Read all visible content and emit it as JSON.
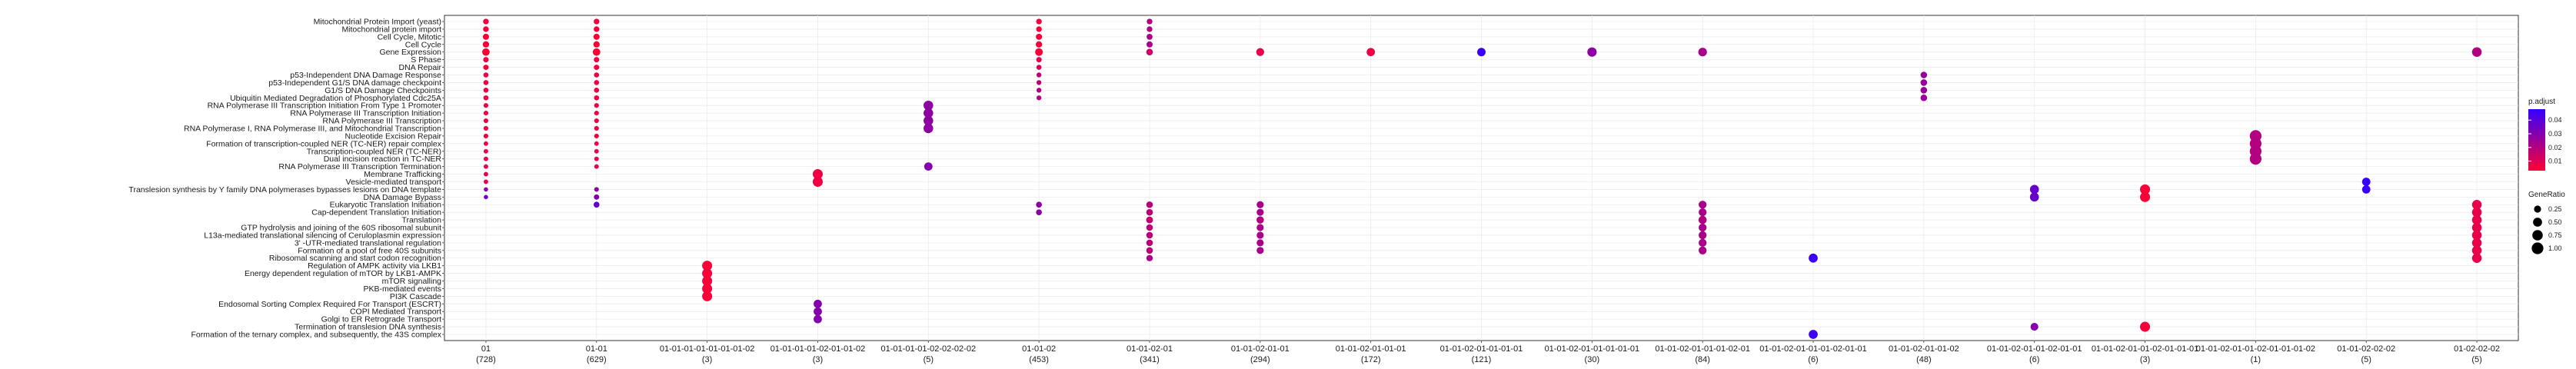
{
  "chart_data": {
    "type": "scatter",
    "title": "",
    "xlabel": "",
    "ylabel": "",
    "grid": true,
    "legend_position": "right",
    "categories": [
      {
        "label": "01",
        "count": "(728)"
      },
      {
        "label": "01-01",
        "count": "(629)"
      },
      {
        "label": "01-01-01-01-01-01-01-02",
        "count": "(3)"
      },
      {
        "label": "01-01-01-01-02-01-01-02",
        "count": "(3)"
      },
      {
        "label": "01-01-01-01-02-02-02-02",
        "count": "(5)"
      },
      {
        "label": "01-01-02",
        "count": "(453)"
      },
      {
        "label": "01-01-02-01",
        "count": "(341)"
      },
      {
        "label": "01-01-02-01-01",
        "count": "(294)"
      },
      {
        "label": "01-01-02-01-01-01",
        "count": "(172)"
      },
      {
        "label": "01-01-02-01-01-01-01",
        "count": "(121)"
      },
      {
        "label": "01-01-02-01-01-01-01-01",
        "count": "(30)"
      },
      {
        "label": "01-01-02-01-01-01-02-01",
        "count": "(84)"
      },
      {
        "label": "01-01-02-01-01-01-02-01-01",
        "count": "(6)"
      },
      {
        "label": "01-01-02-01-01-02",
        "count": "(48)"
      },
      {
        "label": "01-01-02-01-01-02-01-01",
        "count": "(6)"
      },
      {
        "label": "01-01-02-01-01-02-01-01-01",
        "count": "(3)"
      },
      {
        "label": "01-01-02-01-01-02-01-01-01-02",
        "count": "(1)"
      },
      {
        "label": "01-01-02-02-02",
        "count": "(5)"
      },
      {
        "label": "01-02-02-02",
        "count": "(5)"
      }
    ],
    "pathways": [
      "Mitochondrial Protein Import (yeast)",
      "Mitochondrial protein import",
      "Cell Cycle, Mitotic",
      "Cell Cycle",
      "Gene Expression",
      "S Phase",
      "DNA Repair",
      "p53-Independent DNA Damage Response",
      "p53-Independent G1/S DNA damage checkpoint",
      "G1/S DNA Damage Checkpoints",
      "Ubiquitin Mediated Degradation of Phosphorylated Cdc25A",
      "RNA Polymerase III Transcription Initiation From Type 1 Promoter",
      "RNA Polymerase III Transcription Initiation",
      "RNA Polymerase III Transcription",
      "RNA Polymerase I, RNA Polymerase III, and Mitochondrial Transcription",
      "Nucleotide Excision Repair",
      "Formation of transcription-coupled NER (TC-NER) repair complex",
      "Transcription-coupled NER (TC-NER)",
      "Dual incision reaction in TC-NER",
      "RNA Polymerase III Transcription Termination",
      "Membrane Trafficking",
      "Vesicle-mediated transport",
      "Translesion synthesis by Y family DNA polymerases bypasses lesions on DNA template",
      "DNA Damage Bypass",
      "Eukaryotic Translation Initiation",
      "Cap-dependent Translation Initiation",
      "Translation",
      "GTP hydrolysis and joining of the 60S ribosomal subunit",
      "L13a-mediated translational silencing of Ceruloplasmin expression",
      "3' -UTR-mediated translational regulation",
      "Formation of a pool of free 40S subunits",
      "Ribosomal scanning and start codon recognition",
      "Regulation of AMPK activity via LKB1",
      "Energy dependent regulation of mTOR by LKB1-AMPK",
      "mTOR signalling",
      "PKB-mediated events",
      "PI3K Cascade",
      "Endosomal Sorting Complex Required For Transport (ESCRT)",
      "COPI Mediated Transport",
      "Golgi to ER Retrograde Transport",
      "Termination of translesion DNA synthesis",
      "Formation of the ternary complex, and subsequently, the 43S complex"
    ],
    "points": [
      {
        "x": 0,
        "y": 0,
        "ratio": 0.12,
        "p": 0.005
      },
      {
        "x": 0,
        "y": 1,
        "ratio": 0.12,
        "p": 0.005
      },
      {
        "x": 0,
        "y": 2,
        "ratio": 0.16,
        "p": 0.005
      },
      {
        "x": 0,
        "y": 3,
        "ratio": 0.18,
        "p": 0.005
      },
      {
        "x": 0,
        "y": 4,
        "ratio": 0.3,
        "p": 0.004
      },
      {
        "x": 0,
        "y": 5,
        "ratio": 0.1,
        "p": 0.005
      },
      {
        "x": 0,
        "y": 6,
        "ratio": 0.1,
        "p": 0.005
      },
      {
        "x": 0,
        "y": 7,
        "ratio": 0.08,
        "p": 0.006
      },
      {
        "x": 0,
        "y": 8,
        "ratio": 0.08,
        "p": 0.006
      },
      {
        "x": 0,
        "y": 9,
        "ratio": 0.08,
        "p": 0.006
      },
      {
        "x": 0,
        "y": 10,
        "ratio": 0.08,
        "p": 0.006
      },
      {
        "x": 0,
        "y": 11,
        "ratio": 0.06,
        "p": 0.007
      },
      {
        "x": 0,
        "y": 12,
        "ratio": 0.06,
        "p": 0.007
      },
      {
        "x": 0,
        "y": 13,
        "ratio": 0.06,
        "p": 0.007
      },
      {
        "x": 0,
        "y": 14,
        "ratio": 0.06,
        "p": 0.007
      },
      {
        "x": 0,
        "y": 15,
        "ratio": 0.06,
        "p": 0.007
      },
      {
        "x": 0,
        "y": 16,
        "ratio": 0.05,
        "p": 0.008
      },
      {
        "x": 0,
        "y": 17,
        "ratio": 0.05,
        "p": 0.008
      },
      {
        "x": 0,
        "y": 18,
        "ratio": 0.05,
        "p": 0.008
      },
      {
        "x": 0,
        "y": 19,
        "ratio": 0.05,
        "p": 0.008
      },
      {
        "x": 0,
        "y": 20,
        "ratio": 0.05,
        "p": 0.009
      },
      {
        "x": 0,
        "y": 21,
        "ratio": 0.05,
        "p": 0.009
      },
      {
        "x": 0,
        "y": 22,
        "ratio": 0.04,
        "p": 0.028
      },
      {
        "x": 0,
        "y": 23,
        "ratio": 0.04,
        "p": 0.036
      },
      {
        "x": 1,
        "y": 0,
        "ratio": 0.12,
        "p": 0.005
      },
      {
        "x": 1,
        "y": 1,
        "ratio": 0.12,
        "p": 0.005
      },
      {
        "x": 1,
        "y": 2,
        "ratio": 0.16,
        "p": 0.005
      },
      {
        "x": 1,
        "y": 3,
        "ratio": 0.18,
        "p": 0.005
      },
      {
        "x": 1,
        "y": 4,
        "ratio": 0.3,
        "p": 0.004
      },
      {
        "x": 1,
        "y": 5,
        "ratio": 0.1,
        "p": 0.005
      },
      {
        "x": 1,
        "y": 6,
        "ratio": 0.1,
        "p": 0.005
      },
      {
        "x": 1,
        "y": 7,
        "ratio": 0.08,
        "p": 0.006
      },
      {
        "x": 1,
        "y": 8,
        "ratio": 0.08,
        "p": 0.006
      },
      {
        "x": 1,
        "y": 9,
        "ratio": 0.08,
        "p": 0.006
      },
      {
        "x": 1,
        "y": 10,
        "ratio": 0.08,
        "p": 0.006
      },
      {
        "x": 1,
        "y": 11,
        "ratio": 0.06,
        "p": 0.007
      },
      {
        "x": 1,
        "y": 12,
        "ratio": 0.06,
        "p": 0.007
      },
      {
        "x": 1,
        "y": 13,
        "ratio": 0.06,
        "p": 0.007
      },
      {
        "x": 1,
        "y": 14,
        "ratio": 0.06,
        "p": 0.007
      },
      {
        "x": 1,
        "y": 15,
        "ratio": 0.06,
        "p": 0.007
      },
      {
        "x": 1,
        "y": 16,
        "ratio": 0.05,
        "p": 0.008
      },
      {
        "x": 1,
        "y": 17,
        "ratio": 0.05,
        "p": 0.008
      },
      {
        "x": 1,
        "y": 18,
        "ratio": 0.05,
        "p": 0.008
      },
      {
        "x": 1,
        "y": 19,
        "ratio": 0.05,
        "p": 0.009
      },
      {
        "x": 1,
        "y": 22,
        "ratio": 0.06,
        "p": 0.028
      },
      {
        "x": 1,
        "y": 23,
        "ratio": 0.1,
        "p": 0.03
      },
      {
        "x": 1,
        "y": 24,
        "ratio": 0.14,
        "p": 0.037
      },
      {
        "x": 2,
        "y": 32,
        "ratio": 0.67,
        "p": 0.004
      },
      {
        "x": 2,
        "y": 33,
        "ratio": 0.67,
        "p": 0.004
      },
      {
        "x": 2,
        "y": 34,
        "ratio": 0.67,
        "p": 0.004
      },
      {
        "x": 2,
        "y": 35,
        "ratio": 0.67,
        "p": 0.004
      },
      {
        "x": 2,
        "y": 36,
        "ratio": 0.67,
        "p": 0.004
      },
      {
        "x": 3,
        "y": 20,
        "ratio": 0.67,
        "p": 0.006
      },
      {
        "x": 3,
        "y": 21,
        "ratio": 0.67,
        "p": 0.006
      },
      {
        "x": 3,
        "y": 37,
        "ratio": 0.4,
        "p": 0.03
      },
      {
        "x": 3,
        "y": 38,
        "ratio": 0.4,
        "p": 0.03
      },
      {
        "x": 3,
        "y": 39,
        "ratio": 0.4,
        "p": 0.03
      },
      {
        "x": 4,
        "y": 11,
        "ratio": 0.6,
        "p": 0.028
      },
      {
        "x": 4,
        "y": 12,
        "ratio": 0.6,
        "p": 0.028
      },
      {
        "x": 4,
        "y": 13,
        "ratio": 0.6,
        "p": 0.028
      },
      {
        "x": 4,
        "y": 14,
        "ratio": 0.6,
        "p": 0.028
      },
      {
        "x": 4,
        "y": 19,
        "ratio": 0.4,
        "p": 0.03
      },
      {
        "x": 5,
        "y": 0,
        "ratio": 0.12,
        "p": 0.005
      },
      {
        "x": 5,
        "y": 1,
        "ratio": 0.12,
        "p": 0.005
      },
      {
        "x": 5,
        "y": 2,
        "ratio": 0.16,
        "p": 0.005
      },
      {
        "x": 5,
        "y": 3,
        "ratio": 0.18,
        "p": 0.005
      },
      {
        "x": 5,
        "y": 4,
        "ratio": 0.32,
        "p": 0.004
      },
      {
        "x": 5,
        "y": 5,
        "ratio": 0.1,
        "p": 0.008
      },
      {
        "x": 5,
        "y": 6,
        "ratio": 0.08,
        "p": 0.012
      },
      {
        "x": 5,
        "y": 7,
        "ratio": 0.07,
        "p": 0.018
      },
      {
        "x": 5,
        "y": 8,
        "ratio": 0.07,
        "p": 0.018
      },
      {
        "x": 5,
        "y": 9,
        "ratio": 0.07,
        "p": 0.02
      },
      {
        "x": 5,
        "y": 10,
        "ratio": 0.07,
        "p": 0.02
      },
      {
        "x": 5,
        "y": 24,
        "ratio": 0.14,
        "p": 0.028
      },
      {
        "x": 5,
        "y": 25,
        "ratio": 0.14,
        "p": 0.028
      },
      {
        "x": 6,
        "y": 0,
        "ratio": 0.12,
        "p": 0.02
      },
      {
        "x": 6,
        "y": 1,
        "ratio": 0.12,
        "p": 0.02
      },
      {
        "x": 6,
        "y": 2,
        "ratio": 0.14,
        "p": 0.022
      },
      {
        "x": 6,
        "y": 3,
        "ratio": 0.16,
        "p": 0.022
      },
      {
        "x": 6,
        "y": 4,
        "ratio": 0.2,
        "p": 0.014
      },
      {
        "x": 6,
        "y": 24,
        "ratio": 0.2,
        "p": 0.018
      },
      {
        "x": 6,
        "y": 25,
        "ratio": 0.2,
        "p": 0.018
      },
      {
        "x": 6,
        "y": 26,
        "ratio": 0.22,
        "p": 0.016
      },
      {
        "x": 6,
        "y": 27,
        "ratio": 0.2,
        "p": 0.018
      },
      {
        "x": 6,
        "y": 28,
        "ratio": 0.2,
        "p": 0.018
      },
      {
        "x": 6,
        "y": 29,
        "ratio": 0.2,
        "p": 0.018
      },
      {
        "x": 6,
        "y": 30,
        "ratio": 0.2,
        "p": 0.018
      },
      {
        "x": 6,
        "y": 31,
        "ratio": 0.18,
        "p": 0.022
      },
      {
        "x": 7,
        "y": 4,
        "ratio": 0.35,
        "p": 0.008
      },
      {
        "x": 7,
        "y": 24,
        "ratio": 0.25,
        "p": 0.022
      },
      {
        "x": 7,
        "y": 25,
        "ratio": 0.25,
        "p": 0.022
      },
      {
        "x": 7,
        "y": 26,
        "ratio": 0.28,
        "p": 0.02
      },
      {
        "x": 7,
        "y": 27,
        "ratio": 0.25,
        "p": 0.022
      },
      {
        "x": 7,
        "y": 28,
        "ratio": 0.25,
        "p": 0.022
      },
      {
        "x": 7,
        "y": 29,
        "ratio": 0.25,
        "p": 0.022
      },
      {
        "x": 7,
        "y": 30,
        "ratio": 0.25,
        "p": 0.022
      },
      {
        "x": 8,
        "y": 4,
        "ratio": 0.4,
        "p": 0.006
      },
      {
        "x": 9,
        "y": 4,
        "ratio": 0.42,
        "p": 0.046
      },
      {
        "x": 10,
        "y": 4,
        "ratio": 0.55,
        "p": 0.028
      },
      {
        "x": 11,
        "y": 4,
        "ratio": 0.45,
        "p": 0.022
      },
      {
        "x": 11,
        "y": 24,
        "ratio": 0.35,
        "p": 0.022
      },
      {
        "x": 11,
        "y": 25,
        "ratio": 0.35,
        "p": 0.022
      },
      {
        "x": 11,
        "y": 26,
        "ratio": 0.38,
        "p": 0.02
      },
      {
        "x": 11,
        "y": 27,
        "ratio": 0.35,
        "p": 0.022
      },
      {
        "x": 11,
        "y": 28,
        "ratio": 0.35,
        "p": 0.022
      },
      {
        "x": 11,
        "y": 29,
        "ratio": 0.35,
        "p": 0.022
      },
      {
        "x": 11,
        "y": 30,
        "ratio": 0.35,
        "p": 0.022
      },
      {
        "x": 12,
        "y": 31,
        "ratio": 0.5,
        "p": 0.046
      },
      {
        "x": 12,
        "y": 41,
        "ratio": 0.5,
        "p": 0.046
      },
      {
        "x": 13,
        "y": 7,
        "ratio": 0.2,
        "p": 0.026
      },
      {
        "x": 13,
        "y": 8,
        "ratio": 0.2,
        "p": 0.026
      },
      {
        "x": 13,
        "y": 9,
        "ratio": 0.2,
        "p": 0.026
      },
      {
        "x": 13,
        "y": 10,
        "ratio": 0.2,
        "p": 0.026
      },
      {
        "x": 14,
        "y": 22,
        "ratio": 0.5,
        "p": 0.036
      },
      {
        "x": 14,
        "y": 23,
        "ratio": 0.5,
        "p": 0.036
      },
      {
        "x": 14,
        "y": 40,
        "ratio": 0.33,
        "p": 0.03
      },
      {
        "x": 15,
        "y": 22,
        "ratio": 0.67,
        "p": 0.004
      },
      {
        "x": 15,
        "y": 23,
        "ratio": 0.67,
        "p": 0.004
      },
      {
        "x": 15,
        "y": 40,
        "ratio": 0.67,
        "p": 0.004
      },
      {
        "x": 16,
        "y": 15,
        "ratio": 1.0,
        "p": 0.02
      },
      {
        "x": 16,
        "y": 16,
        "ratio": 1.0,
        "p": 0.02
      },
      {
        "x": 16,
        "y": 17,
        "ratio": 1.0,
        "p": 0.02
      },
      {
        "x": 16,
        "y": 18,
        "ratio": 1.0,
        "p": 0.02
      },
      {
        "x": 17,
        "y": 21,
        "ratio": 0.4,
        "p": 0.047
      },
      {
        "x": 17,
        "y": 22,
        "ratio": 0.4,
        "p": 0.047
      },
      {
        "x": 18,
        "y": 4,
        "ratio": 0.6,
        "p": 0.02
      },
      {
        "x": 18,
        "y": 24,
        "ratio": 0.6,
        "p": 0.008
      },
      {
        "x": 18,
        "y": 25,
        "ratio": 0.6,
        "p": 0.008
      },
      {
        "x": 18,
        "y": 26,
        "ratio": 0.6,
        "p": 0.008
      },
      {
        "x": 18,
        "y": 27,
        "ratio": 0.6,
        "p": 0.008
      },
      {
        "x": 18,
        "y": 28,
        "ratio": 0.6,
        "p": 0.008
      },
      {
        "x": 18,
        "y": 29,
        "ratio": 0.6,
        "p": 0.008
      },
      {
        "x": 18,
        "y": 30,
        "ratio": 0.6,
        "p": 0.008
      },
      {
        "x": 18,
        "y": 31,
        "ratio": 0.6,
        "p": 0.008
      }
    ],
    "legend": {
      "color_title": "p.adjust",
      "color_ticks": [
        "0.04",
        "0.03",
        "0.02",
        "0.01"
      ],
      "color_tick_values": [
        0.04,
        0.03,
        0.02,
        0.01
      ],
      "color_range": [
        0.003,
        0.048
      ],
      "color_low": "#ff0033",
      "color_high": "#3300ff",
      "size_title": "GeneRatio",
      "size_ticks": [
        "0.25",
        "0.50",
        "0.75",
        "1.00"
      ],
      "size_tick_values": [
        0.25,
        0.5,
        0.75,
        1.0
      ]
    }
  }
}
